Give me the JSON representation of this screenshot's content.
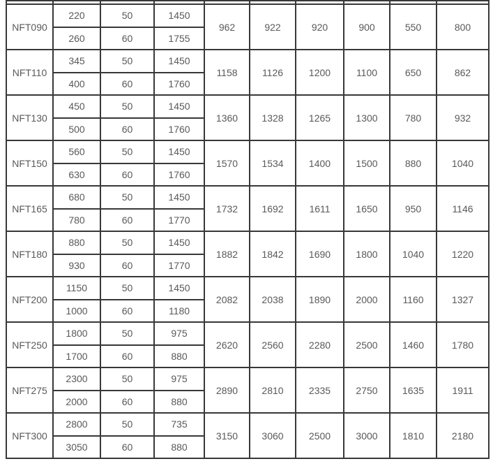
{
  "colors": {
    "background": "#ffffff",
    "border": "#383838",
    "text": "#595959"
  },
  "table": {
    "description_visible_text_only": true,
    "column_count": 10,
    "partial_top_row_cells": 10,
    "rows": [
      {
        "model": "NFT090",
        "hz50": [
          "220",
          "50",
          "1450"
        ],
        "hz60": [
          "260",
          "60",
          "1755"
        ],
        "span": [
          "962",
          "922",
          "920",
          "900",
          "550",
          "800"
        ]
      },
      {
        "model": "NFT110",
        "hz50": [
          "345",
          "50",
          "1450"
        ],
        "hz60": [
          "400",
          "60",
          "1760"
        ],
        "span": [
          "1158",
          "1126",
          "1200",
          "1100",
          "650",
          "862"
        ]
      },
      {
        "model": "NFT130",
        "hz50": [
          "450",
          "50",
          "1450"
        ],
        "hz60": [
          "500",
          "60",
          "1760"
        ],
        "span": [
          "1360",
          "1328",
          "1265",
          "1300",
          "780",
          "932"
        ]
      },
      {
        "model": "NFT150",
        "hz50": [
          "560",
          "50",
          "1450"
        ],
        "hz60": [
          "630",
          "60",
          "1760"
        ],
        "span": [
          "1570",
          "1534",
          "1400",
          "1500",
          "880",
          "1040"
        ]
      },
      {
        "model": "NFT165",
        "hz50": [
          "680",
          "50",
          "1450"
        ],
        "hz60": [
          "780",
          "60",
          "1770"
        ],
        "span": [
          "1732",
          "1692",
          "1611",
          "1650",
          "950",
          "1146"
        ]
      },
      {
        "model": "NFT180",
        "hz50": [
          "880",
          "50",
          "1450"
        ],
        "hz60": [
          "930",
          "60",
          "1770"
        ],
        "span": [
          "1882",
          "1842",
          "1690",
          "1800",
          "1040",
          "1220"
        ]
      },
      {
        "model": "NFT200",
        "hz50": [
          "1150",
          "50",
          "1450"
        ],
        "hz60": [
          "1000",
          "60",
          "1180"
        ],
        "span": [
          "2082",
          "2038",
          "1890",
          "2000",
          "1160",
          "1327"
        ]
      },
      {
        "model": "NFT250",
        "hz50": [
          "1800",
          "50",
          "975"
        ],
        "hz60": [
          "1700",
          "60",
          "880"
        ],
        "span": [
          "2620",
          "2560",
          "2280",
          "2500",
          "1460",
          "1780"
        ]
      },
      {
        "model": "NFT275",
        "hz50": [
          "2300",
          "50",
          "975"
        ],
        "hz60": [
          "2000",
          "60",
          "880"
        ],
        "span": [
          "2890",
          "2810",
          "2335",
          "2750",
          "1635",
          "1911"
        ]
      },
      {
        "model": "NFT300",
        "hz50": [
          "2800",
          "50",
          "735"
        ],
        "hz60": [
          "3050",
          "60",
          "880"
        ],
        "span": [
          "3150",
          "3060",
          "2500",
          "3000",
          "1810",
          "2180"
        ]
      }
    ]
  }
}
